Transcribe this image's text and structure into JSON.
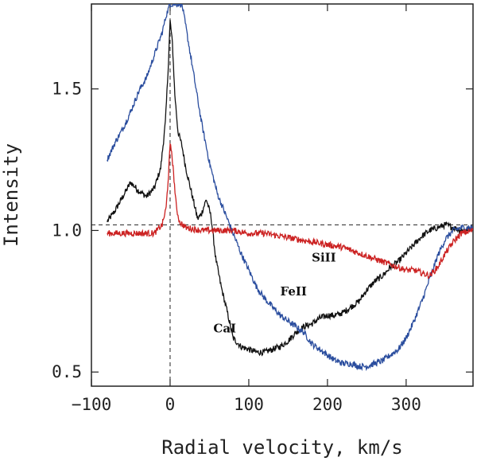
{
  "chart_data": {
    "type": "line",
    "xlabel": "Radial velocity, km/s",
    "ylabel": "Intensity",
    "xlim": [
      -100,
      385
    ],
    "ylim": [
      0.45,
      1.8
    ],
    "xticks": [
      -100,
      0,
      100,
      200,
      300
    ],
    "xtick_labels": [
      "−100",
      "0",
      "100",
      "200",
      "300"
    ],
    "yticks": [
      0.5,
      1.0,
      1.5
    ],
    "ytick_labels": [
      "0.5",
      "1.0",
      "1.5"
    ],
    "reference_lines": {
      "horizontal_y": 1.02,
      "vertical_x": 0
    },
    "series": [
      {
        "name": "CaI",
        "color": "#111111",
        "label": "CaI",
        "label_at": [
          55,
          0.64
        ],
        "points": [
          [
            -80,
            1.03
          ],
          [
            -70,
            1.07
          ],
          [
            -60,
            1.12
          ],
          [
            -50,
            1.17
          ],
          [
            -40,
            1.14
          ],
          [
            -30,
            1.12
          ],
          [
            -20,
            1.15
          ],
          [
            -12,
            1.22
          ],
          [
            -6,
            1.38
          ],
          [
            -2,
            1.6
          ],
          [
            0,
            1.74
          ],
          [
            3,
            1.66
          ],
          [
            6,
            1.48
          ],
          [
            10,
            1.35
          ],
          [
            15,
            1.3
          ],
          [
            20,
            1.22
          ],
          [
            25,
            1.16
          ],
          [
            30,
            1.1
          ],
          [
            35,
            1.04
          ],
          [
            40,
            1.06
          ],
          [
            46,
            1.11
          ],
          [
            52,
            1.05
          ],
          [
            58,
            0.9
          ],
          [
            65,
            0.8
          ],
          [
            72,
            0.72
          ],
          [
            80,
            0.62
          ],
          [
            90,
            0.59
          ],
          [
            100,
            0.58
          ],
          [
            110,
            0.57
          ],
          [
            120,
            0.57
          ],
          [
            130,
            0.58
          ],
          [
            140,
            0.59
          ],
          [
            150,
            0.61
          ],
          [
            160,
            0.64
          ],
          [
            170,
            0.66
          ],
          [
            180,
            0.67
          ],
          [
            190,
            0.69
          ],
          [
            200,
            0.7
          ],
          [
            210,
            0.7
          ],
          [
            220,
            0.71
          ],
          [
            230,
            0.73
          ],
          [
            240,
            0.75
          ],
          [
            250,
            0.79
          ],
          [
            260,
            0.82
          ],
          [
            270,
            0.84
          ],
          [
            280,
            0.87
          ],
          [
            290,
            0.89
          ],
          [
            300,
            0.92
          ],
          [
            310,
            0.95
          ],
          [
            320,
            0.98
          ],
          [
            330,
            1.0
          ],
          [
            340,
            1.01
          ],
          [
            350,
            1.02
          ],
          [
            360,
            1.01
          ],
          [
            370,
            1.0
          ],
          [
            385,
            1.01
          ]
        ]
      },
      {
        "name": "FeII",
        "color": "#2a4d9e",
        "label": "FeII",
        "label_at": [
          140,
          0.77
        ],
        "points": [
          [
            -80,
            1.25
          ],
          [
            -70,
            1.31
          ],
          [
            -60,
            1.36
          ],
          [
            -50,
            1.42
          ],
          [
            -40,
            1.49
          ],
          [
            -30,
            1.54
          ],
          [
            -20,
            1.62
          ],
          [
            -10,
            1.7
          ],
          [
            -5,
            1.76
          ],
          [
            0,
            1.8
          ],
          [
            10,
            1.8
          ],
          [
            15,
            1.8
          ],
          [
            20,
            1.72
          ],
          [
            30,
            1.55
          ],
          [
            40,
            1.38
          ],
          [
            50,
            1.24
          ],
          [
            60,
            1.13
          ],
          [
            70,
            1.06
          ],
          [
            80,
            0.99
          ],
          [
            90,
            0.92
          ],
          [
            100,
            0.86
          ],
          [
            110,
            0.8
          ],
          [
            120,
            0.76
          ],
          [
            130,
            0.73
          ],
          [
            140,
            0.7
          ],
          [
            150,
            0.68
          ],
          [
            160,
            0.66
          ],
          [
            170,
            0.64
          ],
          [
            180,
            0.6
          ],
          [
            190,
            0.58
          ],
          [
            200,
            0.56
          ],
          [
            210,
            0.54
          ],
          [
            220,
            0.53
          ],
          [
            230,
            0.53
          ],
          [
            240,
            0.52
          ],
          [
            250,
            0.52
          ],
          [
            260,
            0.53
          ],
          [
            270,
            0.54
          ],
          [
            280,
            0.56
          ],
          [
            290,
            0.58
          ],
          [
            300,
            0.62
          ],
          [
            310,
            0.68
          ],
          [
            320,
            0.75
          ],
          [
            330,
            0.83
          ],
          [
            340,
            0.91
          ],
          [
            350,
            0.97
          ],
          [
            360,
            1.0
          ],
          [
            370,
            1.01
          ],
          [
            385,
            1.01
          ]
        ]
      },
      {
        "name": "SiII",
        "color": "#cc2222",
        "label": "SiII",
        "label_at": [
          180,
          0.89
        ],
        "points": [
          [
            -80,
            0.99
          ],
          [
            -60,
            0.99
          ],
          [
            -40,
            0.99
          ],
          [
            -20,
            0.99
          ],
          [
            -10,
            1.02
          ],
          [
            -5,
            1.08
          ],
          [
            -2,
            1.2
          ],
          [
            0,
            1.3
          ],
          [
            2,
            1.28
          ],
          [
            5,
            1.18
          ],
          [
            8,
            1.08
          ],
          [
            12,
            1.03
          ],
          [
            20,
            1.01
          ],
          [
            40,
            1.0
          ],
          [
            60,
            1.0
          ],
          [
            80,
            1.0
          ],
          [
            100,
            0.99
          ],
          [
            120,
            0.99
          ],
          [
            140,
            0.98
          ],
          [
            160,
            0.97
          ],
          [
            180,
            0.96
          ],
          [
            200,
            0.95
          ],
          [
            220,
            0.94
          ],
          [
            240,
            0.92
          ],
          [
            260,
            0.9
          ],
          [
            280,
            0.88
          ],
          [
            300,
            0.86
          ],
          [
            310,
            0.86
          ],
          [
            320,
            0.85
          ],
          [
            330,
            0.84
          ],
          [
            340,
            0.87
          ],
          [
            350,
            0.92
          ],
          [
            360,
            0.96
          ],
          [
            370,
            0.99
          ],
          [
            385,
            1.0
          ]
        ]
      }
    ]
  }
}
